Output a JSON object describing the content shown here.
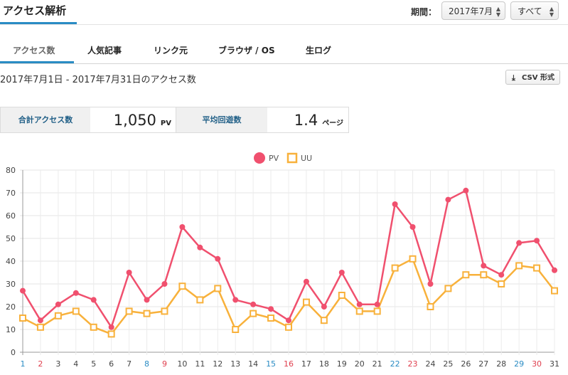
{
  "header": {
    "title": "アクセス解析",
    "period_label": "期間：",
    "period_select": "2017年7月",
    "scope_select": "すべて"
  },
  "tabs": [
    {
      "label": "アクセス数",
      "active": true
    },
    {
      "label": "人気記事",
      "active": false
    },
    {
      "label": "リンク元",
      "active": false
    },
    {
      "label": "ブラウザ / OS",
      "active": false
    },
    {
      "label": "生ログ",
      "active": false
    }
  ],
  "range_title": "2017年7月1日 - 2017年7月31日のアクセス数",
  "csv_button": "CSV 形式",
  "stats": {
    "total_label": "合計アクセス数",
    "total_value": "1,050",
    "total_unit": "PV",
    "avg_label": "平均回遊数",
    "avg_value": "1.4",
    "avg_unit": "ページ"
  },
  "colors": {
    "pv": "#f0506e",
    "uu": "#f8b13b",
    "accent": "#2a8cc4",
    "saturday": "#2a8cc4",
    "sunday": "#e0404f"
  },
  "chart_data": {
    "type": "line",
    "x": [
      "1",
      "2",
      "3",
      "4",
      "5",
      "6",
      "7",
      "8",
      "9",
      "10",
      "11",
      "12",
      "13",
      "14",
      "15",
      "16",
      "17",
      "18",
      "19",
      "20",
      "21",
      "22",
      "23",
      "24",
      "25",
      "26",
      "27",
      "28",
      "29",
      "30",
      "31"
    ],
    "x_colors": [
      "sat",
      "sun",
      "",
      "",
      "",
      "",
      "",
      "sat",
      "sun",
      "",
      "",
      "",
      "",
      "",
      "sat",
      "sun",
      "",
      "",
      "",
      "",
      "",
      "sat",
      "sun",
      "",
      "",
      "",
      "",
      "",
      "sat",
      "sun",
      ""
    ],
    "ylim": [
      0,
      80
    ],
    "yticks": [
      0,
      10,
      20,
      30,
      40,
      50,
      60,
      70,
      80
    ],
    "grid": true,
    "legend_position": "top-center",
    "series": [
      {
        "name": "PV",
        "marker": "circle",
        "values": [
          27,
          14,
          21,
          26,
          23,
          11,
          35,
          23,
          30,
          55,
          46,
          41,
          23,
          21,
          19,
          14,
          31,
          20,
          35,
          21,
          21,
          65,
          55,
          30,
          67,
          71,
          38,
          34,
          48,
          49,
          36
        ]
      },
      {
        "name": "UU",
        "marker": "square",
        "values": [
          15,
          11,
          16,
          18,
          11,
          8,
          18,
          17,
          18,
          29,
          23,
          28,
          10,
          17,
          15,
          11,
          22,
          14,
          25,
          18,
          18,
          37,
          41,
          20,
          28,
          34,
          34,
          30,
          38,
          37,
          27
        ]
      }
    ]
  }
}
